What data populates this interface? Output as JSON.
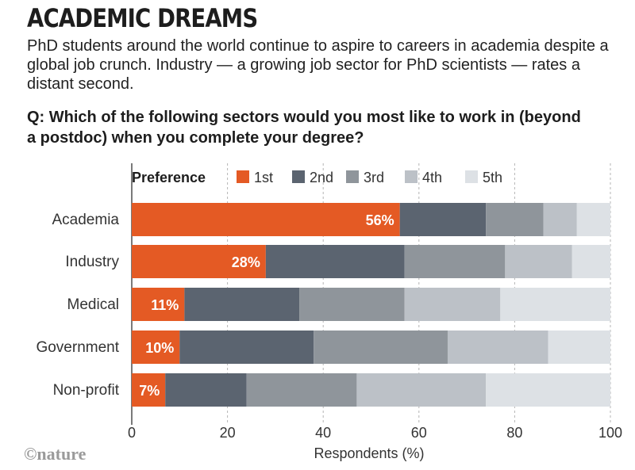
{
  "header": {
    "title": "ACADEMIC DREAMS",
    "subtitle": "PhD students around the world continue to aspire to careers in academia despite a global job crunch. Industry — a growing job sector for PhD scientists — rates a distant second.",
    "question": "Q: Which of the following sectors would you most like to work in (beyond a postdoc) when you complete your degree?"
  },
  "credit": "©nature",
  "chart_data": {
    "type": "bar",
    "orientation": "horizontal",
    "stacked": true,
    "title": "",
    "xlabel": "Respondents (%)",
    "ylabel": "",
    "xlim": [
      0,
      100
    ],
    "xticks": [
      0,
      20,
      40,
      60,
      80,
      100
    ],
    "grid": true,
    "legend_title": "Preference",
    "legend_position": "top",
    "categories": [
      "Academia",
      "Industry",
      "Medical",
      "Government",
      "Non-profit"
    ],
    "series": [
      {
        "name": "1st",
        "color": "#e45a24",
        "values": [
          56,
          28,
          11,
          10,
          7
        ]
      },
      {
        "name": "2nd",
        "color": "#5b6470",
        "values": [
          18,
          29,
          24,
          28,
          17
        ]
      },
      {
        "name": "3rd",
        "color": "#8f959b",
        "values": [
          12,
          21,
          22,
          28,
          23
        ]
      },
      {
        "name": "4th",
        "color": "#bcc1c7",
        "values": [
          7,
          14,
          20,
          21,
          27
        ]
      },
      {
        "name": "5th",
        "color": "#dde1e5",
        "values": [
          7,
          8,
          23,
          13,
          26
        ]
      }
    ],
    "data_labels": [
      "56%",
      "28%",
      "11%",
      "10%",
      "7%"
    ]
  }
}
